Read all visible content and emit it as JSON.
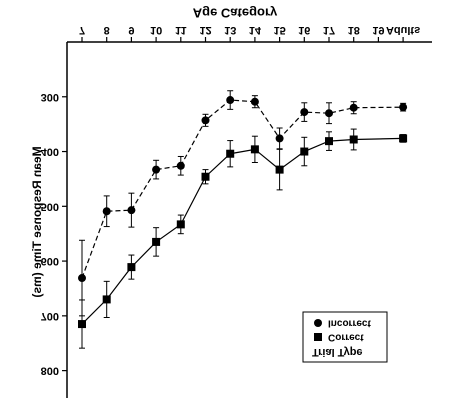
{
  "chart_data": {
    "type": "line",
    "title": "Age Category",
    "y_label": "Mean Response Time (ms)",
    "categories": [
      "7",
      "8",
      "9",
      "10",
      "11",
      "12",
      "13",
      "14",
      "15",
      "16",
      "17",
      "18",
      "19",
      "Adults"
    ],
    "series": [
      {
        "name": "Incorrect",
        "color": "#000000",
        "marker": "circle",
        "dashed": true,
        "values": [
          631,
          509,
          507,
          433,
          426,
          343,
          306,
          309,
          376,
          328,
          330,
          320,
          null,
          319
        ],
        "errors": [
          69,
          28,
          31,
          17,
          17,
          11,
          17,
          11,
          19,
          17,
          19,
          11,
          null,
          7
        ]
      },
      {
        "name": "Correct",
        "color": "#000000",
        "marker": "square",
        "dashed": false,
        "values": [
          715,
          670,
          611,
          565,
          533,
          446,
          404,
          396,
          433,
          400,
          381,
          378,
          null,
          376
        ],
        "errors": [
          44,
          33,
          22,
          26,
          17,
          13,
          24,
          24,
          37,
          26,
          17,
          19,
          null,
          7
        ]
      }
    ],
    "legend_title": "Trial Type",
    "ylim": [
      200,
      850
    ],
    "yticks": [
      300,
      400,
      500,
      600,
      700,
      800
    ],
    "flipped_vertically": true
  }
}
